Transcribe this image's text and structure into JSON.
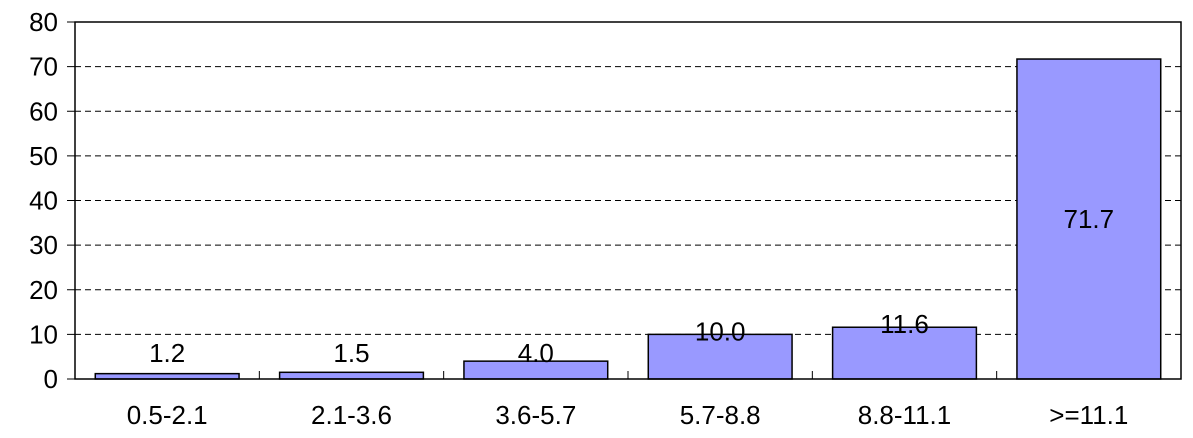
{
  "chart_data": {
    "type": "bar",
    "categories": [
      "0.5-2.1",
      "2.1-3.6",
      "3.6-5.7",
      "5.7-8.8",
      "8.8-11.1",
      ">=11.1"
    ],
    "values": [
      1.2,
      1.5,
      4.0,
      10.0,
      11.6,
      71.7
    ],
    "value_labels": [
      "1.2",
      "1.5",
      "4.0",
      "10.0",
      "11.6",
      "71.7"
    ],
    "y_ticks": [
      "0",
      "10",
      "20",
      "30",
      "40",
      "50",
      "60",
      "70",
      "80"
    ],
    "ylim": [
      0,
      80
    ],
    "grid": true,
    "bar_color": "#9999ff",
    "bar_edge_color": "#000000",
    "legend": "none"
  }
}
